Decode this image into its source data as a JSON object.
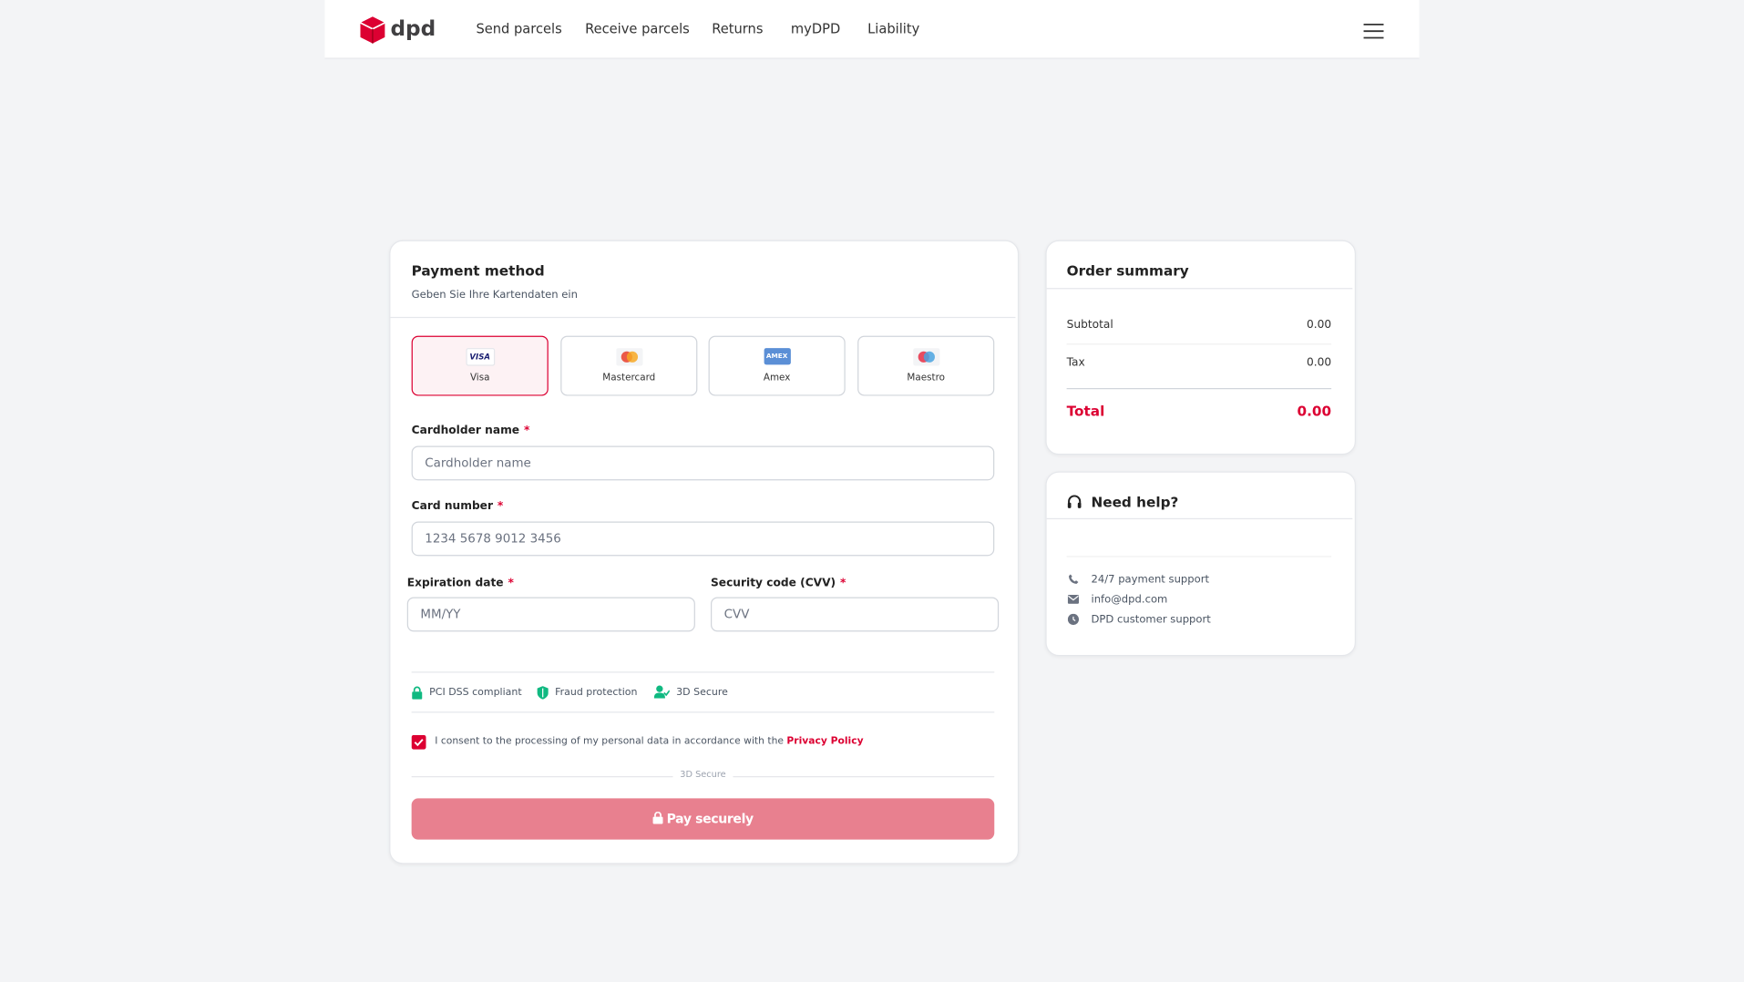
{
  "header": {
    "logo": "dpd",
    "nav": [
      "Send parcels",
      "Receive parcels",
      "Returns",
      "myDPD",
      "Liability"
    ]
  },
  "payment": {
    "title": "Payment method",
    "subtitle": "Geben Sie Ihre Kartendaten ein",
    "methods": [
      {
        "label": "Visa",
        "logo_text": "VISA"
      },
      {
        "label": "Mastercard"
      },
      {
        "label": "Amex",
        "logo_text": "AMEX"
      },
      {
        "label": "Maestro"
      }
    ],
    "fields": [
      {
        "label": "Cardholder name",
        "required": "*",
        "placeholder": "Cardholder name"
      },
      {
        "label": "Card number",
        "required": "*",
        "placeholder": "1234 5678 9012 3456"
      },
      {
        "label": "Expiration date",
        "required": "*",
        "placeholder": "MM/YY"
      },
      {
        "label": "Security code (CVV)",
        "required": "*",
        "placeholder": "CVV"
      }
    ],
    "badges": [
      "PCI DSS compliant",
      "Fraud protection",
      "3D Secure"
    ],
    "consent": {
      "text": "I consent to the processing of my personal data in accordance with the",
      "link": "Privacy Policy"
    },
    "divider": "3D Secure",
    "button": "Pay securely"
  },
  "summary": {
    "title": "Order summary",
    "rows": [
      {
        "label": "Subtotal",
        "value": "0.00"
      },
      {
        "label": "Tax",
        "value": "0.00"
      }
    ],
    "total": {
      "label": "Total",
      "value": "0.00"
    }
  },
  "help": {
    "title": "Need help?",
    "items": [
      "24/7 payment support",
      "info@dpd.com",
      "DPD customer support"
    ]
  }
}
